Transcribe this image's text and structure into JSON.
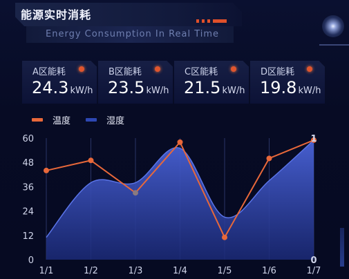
{
  "header": {
    "title": "能源实时消耗",
    "subtitle": "Energy Consumption In Real Time"
  },
  "cards": [
    {
      "label": "A区能耗",
      "value": "24.3",
      "unit": "kW/h"
    },
    {
      "label": "B区能耗",
      "value": "23.5",
      "unit": "kW/h"
    },
    {
      "label": "C区能耗",
      "value": "21.5",
      "unit": "kW/h"
    },
    {
      "label": "D区能耗",
      "value": "19.8",
      "unit": "kW/h"
    }
  ],
  "colors": {
    "accent": "#e0552e",
    "temperature": "#e8683a",
    "humidity": "#2d47b3",
    "background": "#070b24"
  },
  "chart_data": {
    "type": "line",
    "categories": [
      "1/1",
      "1/2",
      "1/3",
      "1/4",
      "1/5",
      "1/6",
      "1/7"
    ],
    "series": [
      {
        "name": "温度",
        "values": [
          44,
          49,
          33,
          58,
          11,
          50,
          59
        ],
        "style": "line",
        "color": "#e8683a"
      },
      {
        "name": "湿度",
        "values": [
          11,
          38,
          38,
          55,
          21,
          39,
          59
        ],
        "style": "area",
        "color": "#2d47b3"
      }
    ],
    "yticks": [
      0,
      12,
      24,
      36,
      48,
      60
    ],
    "ylim": [
      0,
      60
    ],
    "ylim_right": [
      0,
      1
    ],
    "yticks_right": [
      0,
      1
    ],
    "grid": "vertical",
    "legend": "top-left"
  }
}
